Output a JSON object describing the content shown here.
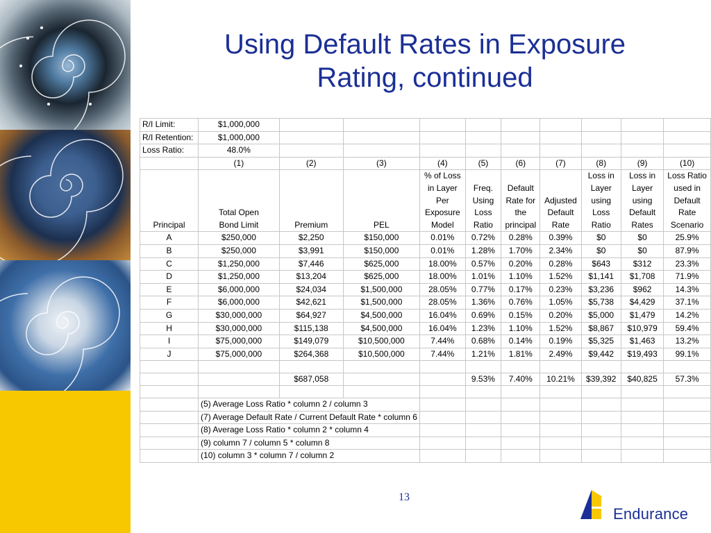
{
  "slide": {
    "title_line1": "Using Default Rates in Exposure",
    "title_line2": "Rating, continued",
    "page_number": "13",
    "logo_text": "Endurance",
    "colors": {
      "title": "#1b2f95",
      "strip": "#f7c800",
      "grid": "#c7c7c7"
    }
  },
  "table": {
    "meta": [
      {
        "label": "R/I Limit:",
        "value": "$1,000,000"
      },
      {
        "label": "R/I Retention:",
        "value": "$1,000,000"
      },
      {
        "label": "Loss Ratio:",
        "value": "48.0%"
      }
    ],
    "col_numbers": [
      "(1)",
      "(2)",
      "(3)",
      "(4)",
      "(5)",
      "(6)",
      "(7)",
      "(8)",
      "(9)",
      "(10)"
    ],
    "headers": [
      [
        "Principal"
      ],
      [
        "Total Open",
        "Bond Limit"
      ],
      [
        "Premium"
      ],
      [
        "PEL"
      ],
      [
        "% of Loss",
        "in Layer",
        "Per",
        "Exposure",
        "Model"
      ],
      [
        "Freq.",
        "Using",
        "Loss",
        "Ratio"
      ],
      [
        "Default",
        "Rate for",
        "the",
        "principal"
      ],
      [
        "Adjusted",
        "Default",
        "Rate"
      ],
      [
        "Loss in",
        "Layer",
        "using",
        "Loss",
        "Ratio"
      ],
      [
        "Loss in",
        "Layer",
        "using",
        "Default",
        "Rates"
      ],
      [
        "Loss Ratio",
        "used in",
        "Default",
        "Rate",
        "Scenario"
      ]
    ],
    "rows": [
      [
        "A",
        "$250,000",
        "$2,250",
        "$150,000",
        "0.01%",
        "0.72%",
        "0.28%",
        "0.39%",
        "$0",
        "$0",
        "25.9%"
      ],
      [
        "B",
        "$250,000",
        "$3,991",
        "$150,000",
        "0.01%",
        "1.28%",
        "1.70%",
        "2.34%",
        "$0",
        "$0",
        "87.9%"
      ],
      [
        "C",
        "$1,250,000",
        "$7,446",
        "$625,000",
        "18.00%",
        "0.57%",
        "0.20%",
        "0.28%",
        "$643",
        "$312",
        "23.3%"
      ],
      [
        "D",
        "$1,250,000",
        "$13,204",
        "$625,000",
        "18.00%",
        "1.01%",
        "1.10%",
        "1.52%",
        "$1,141",
        "$1,708",
        "71.9%"
      ],
      [
        "E",
        "$6,000,000",
        "$24,034",
        "$1,500,000",
        "28.05%",
        "0.77%",
        "0.17%",
        "0.23%",
        "$3,236",
        "$962",
        "14.3%"
      ],
      [
        "F",
        "$6,000,000",
        "$42,621",
        "$1,500,000",
        "28.05%",
        "1.36%",
        "0.76%",
        "1.05%",
        "$5,738",
        "$4,429",
        "37.1%"
      ],
      [
        "G",
        "$30,000,000",
        "$64,927",
        "$4,500,000",
        "16.04%",
        "0.69%",
        "0.15%",
        "0.20%",
        "$5,000",
        "$1,479",
        "14.2%"
      ],
      [
        "H",
        "$30,000,000",
        "$115,138",
        "$4,500,000",
        "16.04%",
        "1.23%",
        "1.10%",
        "1.52%",
        "$8,867",
        "$10,979",
        "59.4%"
      ],
      [
        "I",
        "$75,000,000",
        "$149,079",
        "$10,500,000",
        "7.44%",
        "0.68%",
        "0.14%",
        "0.19%",
        "$5,325",
        "$1,463",
        "13.2%"
      ],
      [
        "J",
        "$75,000,000",
        "$264,368",
        "$10,500,000",
        "7.44%",
        "1.21%",
        "1.81%",
        "2.49%",
        "$9,442",
        "$19,493",
        "99.1%"
      ]
    ],
    "totals": [
      "",
      "",
      "$687,058",
      "",
      "",
      "9.53%",
      "7.40%",
      "10.21%",
      "$39,392",
      "$40,825",
      "57.3%"
    ],
    "notes": [
      "(5) Average Loss Ratio * column 2 / column 3",
      "(7) Average Default Rate / Current Default Rate * column 6",
      "(8) Average Loss Ratio * column 2 * column 4",
      "(9) column 7 / column 5 * column 8",
      "(10) column 3 * column 7 / column 2"
    ]
  }
}
